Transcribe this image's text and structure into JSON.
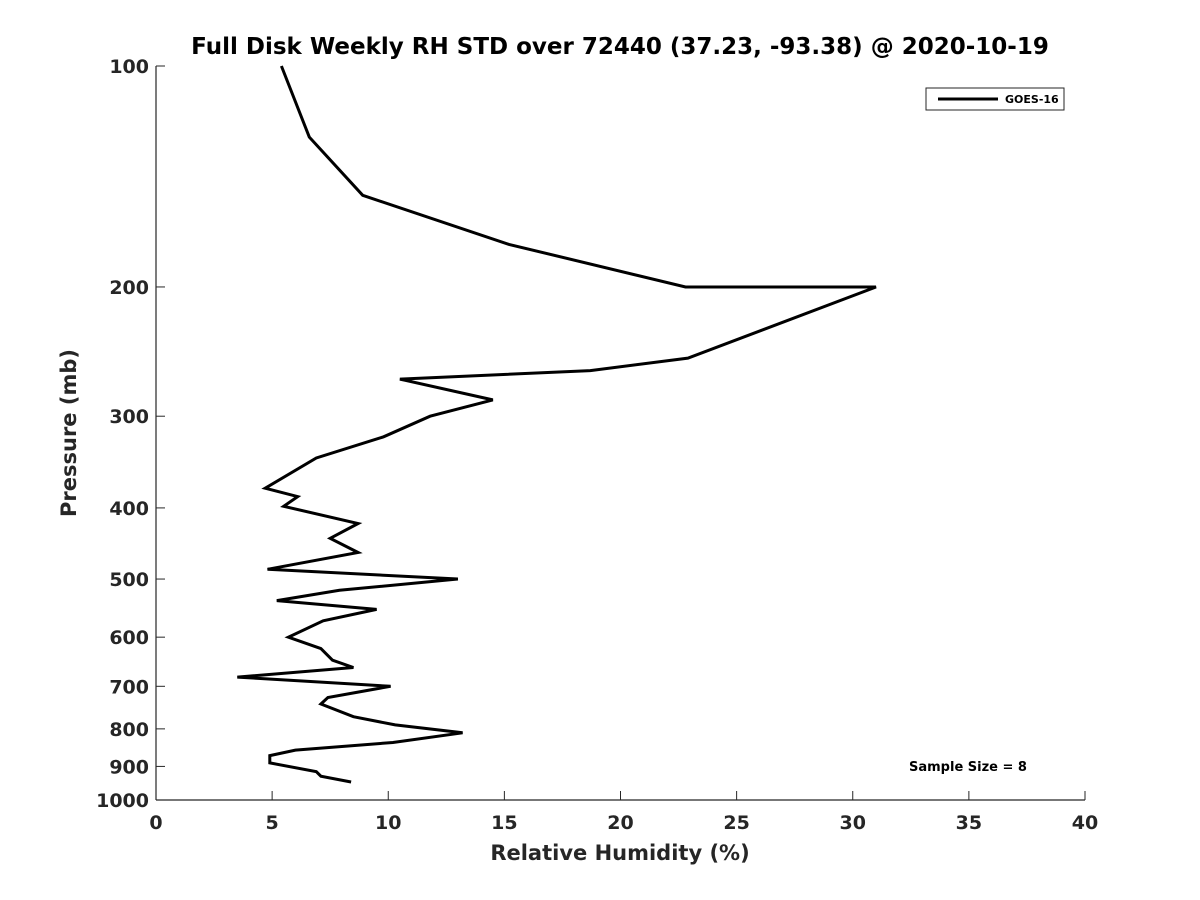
{
  "chart_data": {
    "type": "line",
    "title": "Full Disk Weekly RH STD over 72440 (37.23, -93.38) @ 2020-10-19",
    "xlabel": "Relative Humidity (%)",
    "ylabel": "Pressure (mb)",
    "xlim": [
      0,
      40
    ],
    "ylim": [
      100,
      1000
    ],
    "y_scale": "log",
    "y_reversed": true,
    "x_ticks": [
      0,
      5,
      10,
      15,
      20,
      25,
      30,
      35,
      40
    ],
    "y_ticks": [
      100,
      200,
      300,
      400,
      500,
      600,
      700,
      800,
      900,
      1000
    ],
    "grid": false,
    "legend": {
      "placement": "top-right",
      "entries": [
        "GOES-16"
      ]
    },
    "annotation": "Sample Size = 8",
    "series": [
      {
        "name": "GOES-16",
        "color": "#000000",
        "points": [
          [
            5.4,
            100
          ],
          [
            6.6,
            125
          ],
          [
            8.9,
            150
          ],
          [
            15.2,
            175
          ],
          [
            22.8,
            200
          ],
          [
            31.0,
            200
          ],
          [
            22.9,
            250
          ],
          [
            18.7,
            260
          ],
          [
            10.5,
            267
          ],
          [
            14.5,
            285
          ],
          [
            11.8,
            300
          ],
          [
            9.8,
            320
          ],
          [
            6.9,
            342
          ],
          [
            4.7,
            376
          ],
          [
            6.1,
            386
          ],
          [
            5.5,
            398
          ],
          [
            8.7,
            420
          ],
          [
            7.5,
            440
          ],
          [
            8.7,
            460
          ],
          [
            4.8,
            485
          ],
          [
            13.0,
            500
          ],
          [
            7.9,
            518
          ],
          [
            5.2,
            535
          ],
          [
            9.5,
            550
          ],
          [
            7.2,
            570
          ],
          [
            5.7,
            600
          ],
          [
            7.1,
            622
          ],
          [
            7.6,
            645
          ],
          [
            8.5,
            660
          ],
          [
            3.5,
            680
          ],
          [
            10.1,
            700
          ],
          [
            7.4,
            725
          ],
          [
            7.1,
            740
          ],
          [
            8.5,
            770
          ],
          [
            10.3,
            790
          ],
          [
            13.2,
            810
          ],
          [
            10.2,
            835
          ],
          [
            6.0,
            855
          ],
          [
            4.9,
            870
          ],
          [
            4.9,
            890
          ],
          [
            6.9,
            915
          ],
          [
            7.1,
            928
          ],
          [
            8.4,
            945
          ]
        ]
      }
    ]
  }
}
